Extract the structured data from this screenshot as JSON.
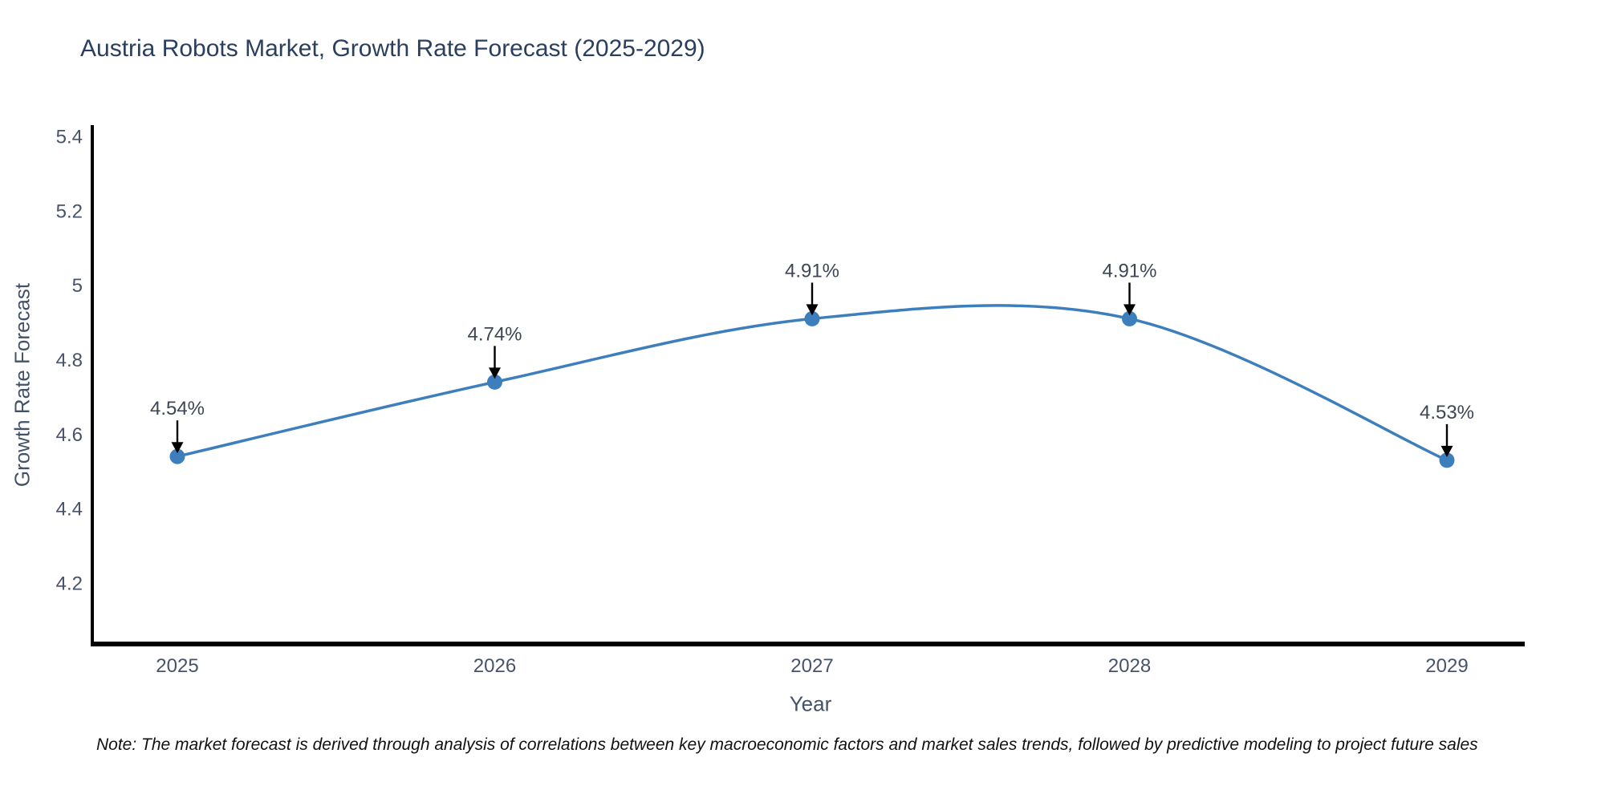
{
  "title": "Austria Robots Market, Growth Rate Forecast (2025-2029)",
  "note": "Note: The market forecast is derived through analysis of correlations between key macroeconomic factors and market sales trends, followed by predictive modeling to project future sales",
  "chart_data": {
    "type": "line",
    "title": "Austria Robots Market, Growth Rate Forecast (2025-2029)",
    "xlabel": "Year",
    "ylabel": "Growth Rate Forecast",
    "categories": [
      "2025",
      "2026",
      "2027",
      "2028",
      "2029"
    ],
    "series": [
      {
        "name": "Growth Rate Forecast",
        "values": [
          4.54,
          4.74,
          4.91,
          4.91,
          4.53
        ],
        "point_labels": [
          "4.54%",
          "4.74%",
          "4.91%",
          "4.91%",
          "4.53%"
        ]
      }
    ],
    "ytick_labels": [
      "5.4",
      "5.2",
      "5",
      "4.8",
      "4.6",
      "4.4",
      "4.2"
    ],
    "ytick_values": [
      5.4,
      5.2,
      5.0,
      4.8,
      4.6,
      4.4,
      4.2
    ],
    "ylim": [
      4.03,
      5.43
    ],
    "grid": false,
    "legend": "none",
    "line_style": "spline",
    "annotations": "value labels with down arrows above each point",
    "colors": {
      "line": "#3d7ebc",
      "marker": "#3d7ebc",
      "arrow": "#000000",
      "axis_line": "#000000",
      "title_text": "#2a3f5f",
      "tick_text": "#47536b",
      "annotation_text": "#3d4654",
      "background": "#ffffff"
    }
  }
}
